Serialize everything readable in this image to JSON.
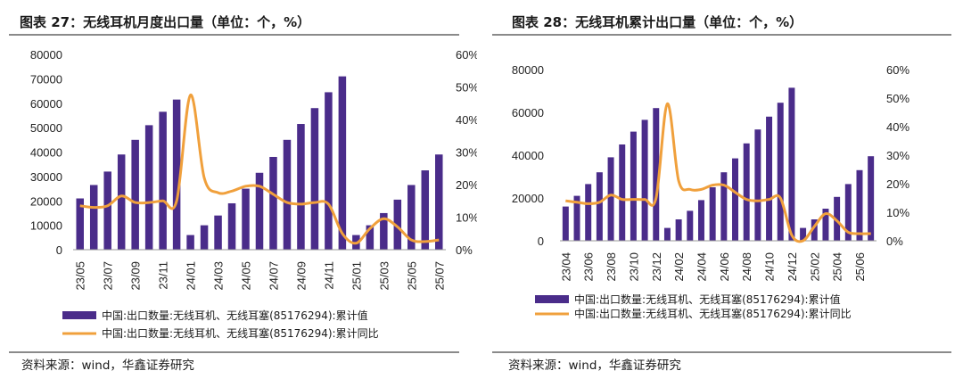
{
  "colors": {
    "bar": "#4a2c8a",
    "line": "#f0a03c",
    "axis": "#9a9a9a"
  },
  "charts": [
    {
      "title": "图表 27：无线耳机月度出口量（单位：个，%）",
      "source": "资料来源：wind，华鑫证券研究",
      "chart_data": {
        "type": "bar",
        "categories": [
          "23/05",
          "23/06",
          "23/07",
          "23/08",
          "23/09",
          "23/10",
          "23/11",
          "23/12",
          "24/01",
          "24/02",
          "24/03",
          "24/04",
          "24/05",
          "24/06",
          "24/07",
          "24/08",
          "24/09",
          "24/10",
          "24/11",
          "24/12",
          "25/01",
          "25/02",
          "25/03",
          "25/04",
          "25/05",
          "25/06",
          "25/07"
        ],
        "x_tick_labels": [
          "23/05",
          "23/07",
          "23/09",
          "23/11",
          "24/01",
          "24/03",
          "24/05",
          "24/07",
          "24/09",
          "24/11",
          "25/01",
          "25/03",
          "25/05",
          "25/07"
        ],
        "series": [
          {
            "name": "中国:出口数量:无线耳机、无线耳塞(85176294):累计值",
            "kind": "bar",
            "axis": "left",
            "values": [
              21000,
              26500,
              32000,
              39000,
              45000,
              51000,
              56500,
              61500,
              6000,
              10000,
              14000,
              19000,
              25000,
              31500,
              38000,
              45000,
              51500,
              58000,
              64500,
              71000,
              6000,
              10000,
              15000,
              20500,
              26500,
              32500,
              39000
            ]
          },
          {
            "name": "中国:出口数量:无线耳机、无线耳塞(85176294):累计同比",
            "kind": "line",
            "axis": "right",
            "values": [
              13.5,
              13,
              13.5,
              16.5,
              14.5,
              14.5,
              15,
              15,
              47.5,
              22,
              17.5,
              18,
              19.5,
              19.5,
              17,
              14.5,
              14,
              14.5,
              14,
              5,
              2,
              6.5,
              9.5,
              7,
              3,
              2.5,
              3
            ]
          }
        ],
        "y_left": {
          "min": 0,
          "max": 80000,
          "ticks": [
            "0",
            "10000",
            "20000",
            "30000",
            "40000",
            "50000",
            "60000",
            "70000",
            "80000"
          ]
        },
        "y_right": {
          "min": 0,
          "max": 60,
          "ticks": [
            "0%",
            "10%",
            "20%",
            "30%",
            "40%",
            "50%",
            "60%"
          ]
        }
      }
    },
    {
      "title": "图表 28：无线耳机累计出口量（单位：个，%）",
      "source": "资料来源：wind，华鑫证券研究",
      "chart_data": {
        "type": "bar",
        "categories": [
          "23/04",
          "23/05",
          "23/06",
          "23/07",
          "23/08",
          "23/09",
          "23/10",
          "23/11",
          "23/12",
          "24/01",
          "24/02",
          "24/03",
          "24/04",
          "24/05",
          "24/06",
          "24/07",
          "24/08",
          "24/09",
          "24/10",
          "24/11",
          "24/12",
          "25/01",
          "25/02",
          "25/03",
          "25/04",
          "25/05",
          "25/06",
          "25/07"
        ],
        "x_tick_labels": [
          "23/04",
          "23/06",
          "23/08",
          "23/10",
          "23/12",
          "24/02",
          "24/04",
          "24/06",
          "24/08",
          "24/10",
          "24/12",
          "25/02",
          "25/04",
          "25/06"
        ],
        "series": [
          {
            "name": "中国:出口数量:无线耳机、无线耳塞(85176294):累计值",
            "kind": "bar",
            "axis": "left",
            "values": [
              16000,
              21000,
              26500,
              32000,
              39000,
              45000,
              51000,
              56500,
              62000,
              6000,
              10000,
              14000,
              19000,
              25000,
              32000,
              38500,
              45500,
              52000,
              58000,
              64500,
              71500,
              6000,
              10000,
              15000,
              20500,
              26500,
              33000,
              39500
            ]
          },
          {
            "name": "中国:出口数量:无线耳机、无线耳塞(85176294):累计同比",
            "kind": "line",
            "axis": "right",
            "values": [
              14,
              13.5,
              13,
              13.5,
              16,
              14.5,
              14.5,
              14.5,
              15,
              48,
              21,
              18,
              18,
              19.5,
              19.5,
              17,
              14.5,
              14,
              14.5,
              15,
              2,
              0,
              5,
              9.5,
              7,
              3,
              2.5,
              2.5
            ]
          }
        ],
        "y_left": {
          "min": 0,
          "max": 80000,
          "ticks": [
            "0",
            "20000",
            "40000",
            "60000",
            "80000"
          ]
        },
        "y_right": {
          "min": 0,
          "max": 60,
          "ticks": [
            "0%",
            "10%",
            "20%",
            "30%",
            "40%",
            "50%",
            "60%"
          ]
        }
      }
    }
  ]
}
